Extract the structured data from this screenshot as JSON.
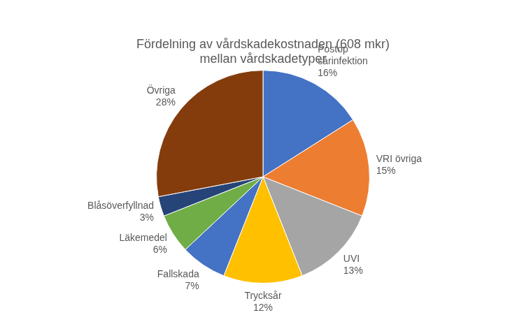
{
  "chart_data": {
    "type": "pie",
    "title": "Fördelning av vårdskadekostnaden (608 mkr)\nmellan vårdskadetyper",
    "categories": [
      "Postop\nsårinfektion",
      "VRI övriga",
      "UVI",
      "Trycksår",
      "Fallskada",
      "Läkemedel",
      "Blåsöverfyllnad",
      "Övriga"
    ],
    "values": [
      16,
      15,
      13,
      12,
      7,
      6,
      3,
      28
    ],
    "value_labels": [
      "16%",
      "15%",
      "13%",
      "12%",
      "7%",
      "6%",
      "3%",
      "28%"
    ],
    "colors": [
      "#4472C4",
      "#ED7D31",
      "#A5A5A5",
      "#FFC000",
      "#4472C4",
      "#70AD47",
      "#264478",
      "#843C0C"
    ],
    "data_labels": true
  }
}
